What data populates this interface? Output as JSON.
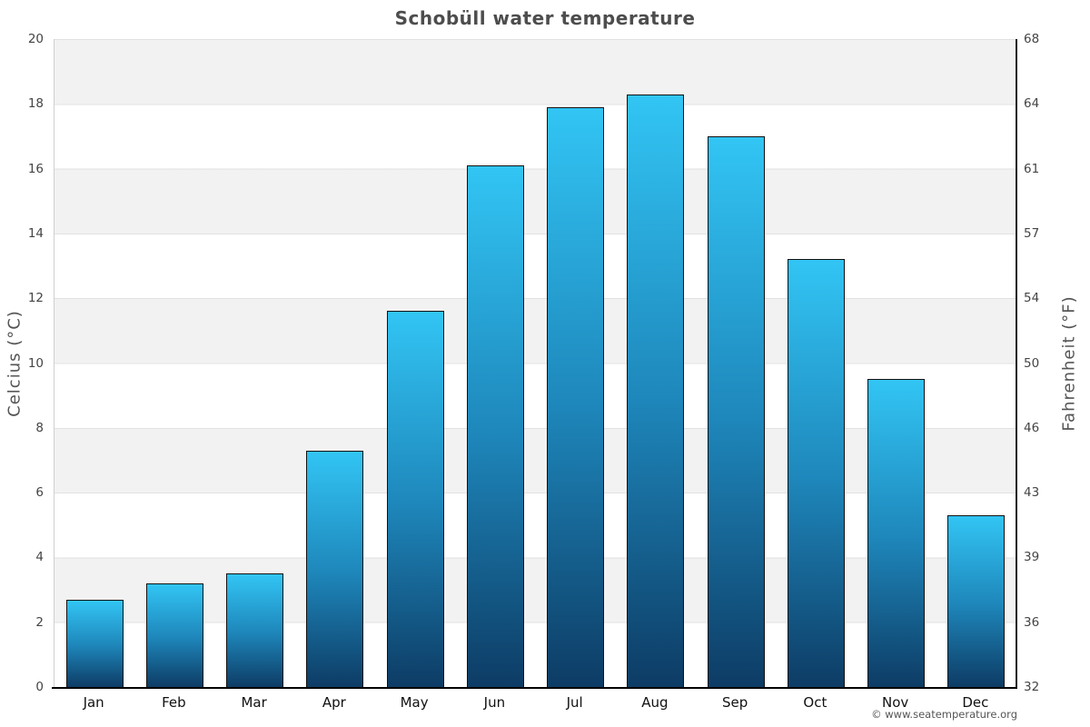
{
  "page": {
    "title": "Schobüll water temperature",
    "copyright": "© www.seatemperature.org"
  },
  "chart_data": {
    "type": "bar",
    "title": "Schobüll water temperature",
    "categories": [
      "Jan",
      "Feb",
      "Mar",
      "Apr",
      "May",
      "Jun",
      "Jul",
      "Aug",
      "Sep",
      "Oct",
      "Nov",
      "Dec"
    ],
    "series": [
      {
        "name": "Water temperature",
        "unit": "°C",
        "values": [
          2.7,
          3.2,
          3.5,
          7.3,
          11.6,
          16.1,
          17.9,
          18.3,
          17.0,
          13.2,
          9.5,
          5.3
        ]
      }
    ],
    "ylabel_left": "Celcius (°C)",
    "ylabel_right": "Fahrenheit (°F)",
    "ylim_celsius": [
      0,
      20
    ],
    "yticks_celsius": [
      "0",
      "2",
      "4",
      "6",
      "8",
      "10",
      "12",
      "14",
      "16",
      "18",
      "20"
    ],
    "yticks_fahrenheit": [
      "32",
      "36",
      "39",
      "43",
      "46",
      "50",
      "54",
      "57",
      "61",
      "64",
      "68"
    ],
    "grid": "horizontal striped bands every 2°C",
    "legend": "none",
    "colors": {
      "bar_gradient_top": "#32c5f4",
      "bar_gradient_mid": "#1e86ba",
      "bar_gradient_bottom": "#0d3c65",
      "bar_border": "#121212",
      "band_gray": "#f2f2f2",
      "band_white": "#ffffff",
      "left_axis_line": "#cfcfcf",
      "right_axis_line": "#1a1a1a",
      "bottom_axis_line": "#000000",
      "tick_text": "#444444",
      "month_text": "#111111",
      "title_text": "#4d4d4d",
      "copyright_text": "#555555"
    }
  }
}
